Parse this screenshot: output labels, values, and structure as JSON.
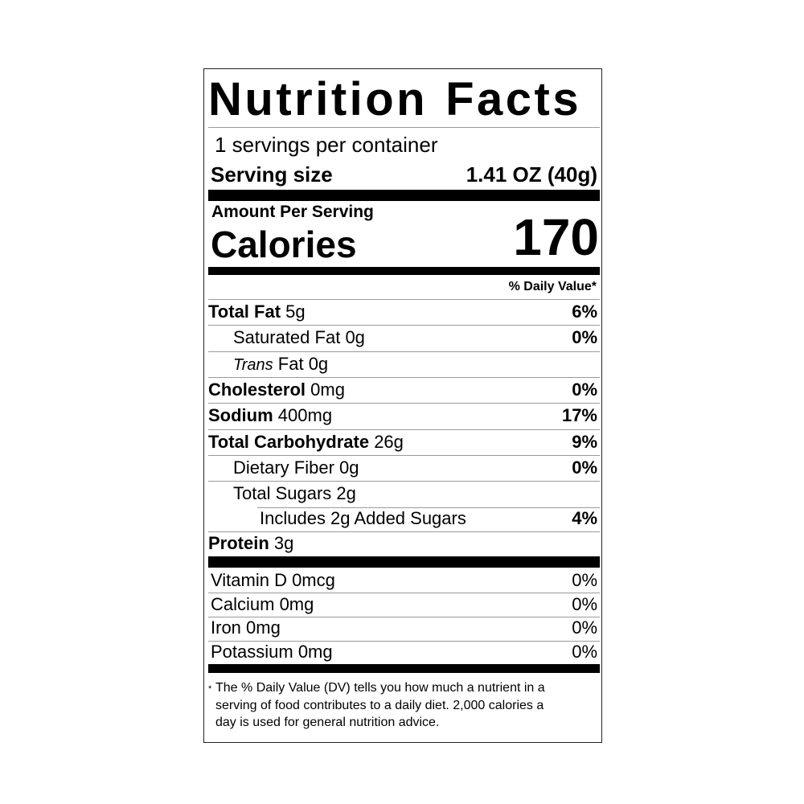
{
  "title": [
    "Nutrition",
    "Facts"
  ],
  "servings_per_container": "1 servings per container",
  "serving_size": {
    "label": "Serving size",
    "value": "1.41 OZ (40g)"
  },
  "amount_per_serving": "Amount Per Serving",
  "calories": {
    "label": "Calories",
    "value": "170"
  },
  "daily_value_header": "% Daily Value*",
  "nutrients": [
    {
      "name": "Total Fat",
      "amount": "5g",
      "dv": "6%"
    },
    {
      "name": "Saturated Fat",
      "amount": "0g",
      "dv": "0%"
    },
    {
      "name_italic": "Trans",
      "name": "Fat",
      "amount": "0g",
      "dv": ""
    },
    {
      "name": "Cholesterol",
      "amount": "0mg",
      "dv": "0%"
    },
    {
      "name": "Sodium",
      "amount": "400mg",
      "dv": "17%"
    },
    {
      "name": "Total Carbohydrate",
      "amount": "26g",
      "dv": "9%"
    },
    {
      "name": "Dietary Fiber",
      "amount": "0g",
      "dv": "0%"
    },
    {
      "name": "Total Sugars",
      "amount": "2g",
      "dv": ""
    },
    {
      "name": "Includes 2g Added Sugars",
      "amount": "",
      "dv": "4%"
    },
    {
      "name": "Protein",
      "amount": "3g",
      "dv": ""
    }
  ],
  "vitamins": [
    {
      "name": "Vitamin D 0mcg",
      "dv": "0%"
    },
    {
      "name": "Calcium 0mg",
      "dv": "0%"
    },
    {
      "name": "Iron 0mg",
      "dv": "0%"
    },
    {
      "name": "Potassium 0mg",
      "dv": "0%"
    }
  ],
  "footnote": {
    "asterisk": "*",
    "lines": [
      "The % Daily Value (DV) tells you how much a nutrient in a",
      "serving of food contributes to a daily diet. 2,000 calories a",
      "day is used for general nutrition advice."
    ]
  }
}
